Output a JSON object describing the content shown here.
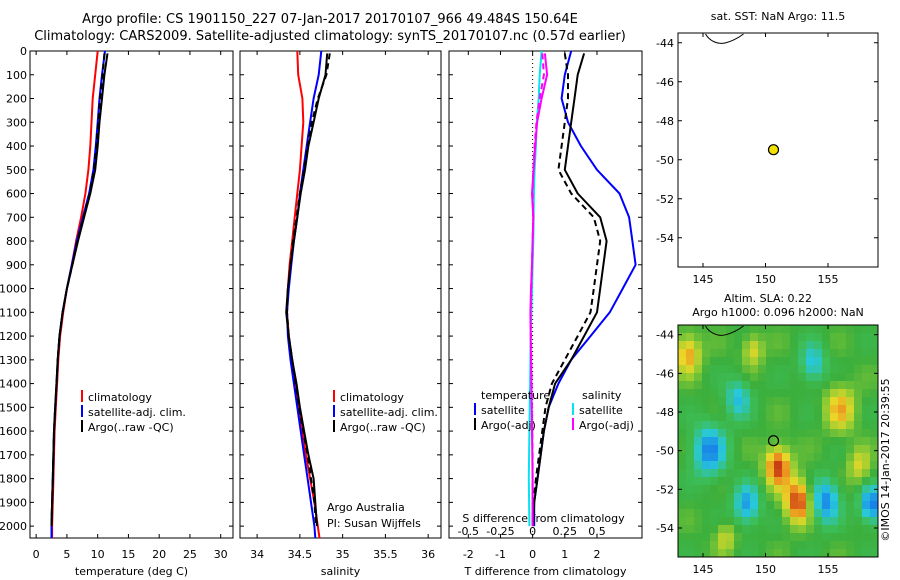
{
  "header": {
    "line1": "Argo profile: CS 1901150_227 07-Jan-2017 20170107_966 49.484S 150.64E",
    "line2": "Climatology: CARS2009. Satellite-adjusted climatology: synTS_20170107.nc (0.57d earlier)"
  },
  "colors": {
    "climatology": "#ff0000",
    "satellite": "#0000ff",
    "argo": "#000000",
    "salinity_satellite": "#00e5ee",
    "salinity_argo": "#ff00ff",
    "marker": "#f4e000"
  },
  "chart_data": [
    {
      "id": "temperature",
      "type": "line",
      "xlabel": "temperature (deg C)",
      "ylabel": "",
      "xlim": [
        -1,
        32
      ],
      "ylim": [
        0,
        2050
      ],
      "y_inverted": true,
      "xticks": [
        0,
        5,
        10,
        15,
        20,
        25,
        30
      ],
      "yticks": [
        0,
        100,
        200,
        300,
        400,
        500,
        600,
        700,
        800,
        900,
        1000,
        1100,
        1200,
        1300,
        1400,
        1500,
        1600,
        1700,
        1800,
        1900,
        2000
      ],
      "legend": [
        "climatology",
        "satellite-adj. clim.",
        "Argo(..raw -QC)"
      ],
      "series": [
        {
          "name": "climatology",
          "color": "#ff0000",
          "dash": "",
          "x": [
            10.0,
            9.6,
            9.2,
            9.0,
            8.8,
            8.5,
            8.0,
            7.3,
            6.5,
            5.8,
            5.0,
            4.4,
            3.9,
            3.6,
            3.4,
            3.2,
            3.0,
            2.9,
            2.8,
            2.7,
            2.6,
            2.6
          ],
          "y": [
            0,
            100,
            200,
            300,
            400,
            500,
            600,
            700,
            800,
            900,
            1000,
            1100,
            1200,
            1300,
            1400,
            1500,
            1600,
            1700,
            1800,
            1900,
            2000,
            2050
          ]
        },
        {
          "name": "satellite-adj. clim.",
          "color": "#0000ff",
          "dash": "",
          "x": [
            11.2,
            10.7,
            10.3,
            10.0,
            9.7,
            9.3,
            8.6,
            7.6,
            6.6,
            5.8,
            5.0,
            4.3,
            3.8,
            3.5,
            3.3,
            3.1,
            2.9,
            2.8,
            2.7,
            2.6,
            2.5,
            2.5
          ],
          "y": [
            0,
            100,
            200,
            300,
            400,
            500,
            600,
            700,
            800,
            900,
            1000,
            1100,
            1200,
            1300,
            1400,
            1500,
            1600,
            1700,
            1800,
            1900,
            2000,
            2050
          ]
        },
        {
          "name": "Argo(..raw -QC)",
          "color": "#000000",
          "dash": "",
          "x": [
            11.6,
            11.1,
            10.7,
            10.3,
            10.0,
            9.6,
            8.8,
            7.8,
            6.8,
            5.9,
            5.0,
            4.3,
            3.8,
            3.5,
            3.3,
            3.1,
            2.9,
            2.8,
            2.7,
            2.6,
            2.5
          ],
          "y": [
            10,
            100,
            200,
            300,
            400,
            500,
            600,
            700,
            800,
            900,
            1000,
            1100,
            1200,
            1300,
            1400,
            1500,
            1600,
            1700,
            1800,
            1900,
            2000
          ]
        },
        {
          "name": "",
          "color": "#000000",
          "dash": "6,4",
          "x": [
            11.1,
            10.8,
            10.4,
            10.1,
            9.8,
            9.4,
            8.7,
            7.7,
            6.7,
            5.9,
            5.0,
            4.3,
            3.8,
            3.5,
            3.3,
            3.1,
            2.9,
            2.8,
            2.7,
            2.6,
            2.5
          ],
          "y": [
            10,
            100,
            200,
            300,
            400,
            500,
            600,
            700,
            800,
            900,
            1000,
            1100,
            1200,
            1300,
            1400,
            1500,
            1600,
            1700,
            1800,
            1900,
            2000
          ]
        }
      ]
    },
    {
      "id": "salinity",
      "type": "line",
      "xlabel": "salinity",
      "ylabel": "",
      "xlim": [
        33.8,
        36.15
      ],
      "ylim": [
        0,
        2050
      ],
      "y_inverted": true,
      "xticks": [
        34,
        34.5,
        35,
        35.5,
        36
      ],
      "legend": [
        "climatology",
        "satellite-adj. clim.",
        "Argo(..raw -QC)"
      ],
      "annotations": [
        "Argo Australia",
        "PI: Susan Wijffels"
      ],
      "series": [
        {
          "name": "climatology",
          "color": "#ff0000",
          "dash": "",
          "x": [
            34.47,
            34.48,
            34.53,
            34.54,
            34.52,
            34.5,
            34.47,
            34.44,
            34.41,
            34.38,
            34.36,
            34.35,
            34.37,
            34.41,
            34.45,
            34.49,
            34.53,
            34.57,
            34.62,
            34.67,
            34.71,
            34.73
          ],
          "y": [
            0,
            100,
            200,
            300,
            400,
            500,
            600,
            700,
            800,
            900,
            1000,
            1100,
            1200,
            1300,
            1400,
            1500,
            1600,
            1700,
            1800,
            1900,
            2000,
            2050
          ]
        },
        {
          "name": "satellite-adj. clim.",
          "color": "#0000ff",
          "dash": "",
          "x": [
            34.75,
            34.72,
            34.66,
            34.62,
            34.58,
            34.54,
            34.5,
            34.47,
            34.43,
            34.4,
            34.37,
            34.35,
            34.36,
            34.39,
            34.43,
            34.47,
            34.51,
            34.55,
            34.59,
            34.63,
            34.67,
            34.68
          ],
          "y": [
            0,
            100,
            200,
            300,
            400,
            500,
            600,
            700,
            800,
            900,
            1000,
            1100,
            1200,
            1300,
            1400,
            1500,
            1600,
            1700,
            1800,
            1900,
            2000,
            2050
          ]
        },
        {
          "name": "Argo(..raw -QC)",
          "color": "#000000",
          "dash": "",
          "x": [
            34.82,
            34.8,
            34.72,
            34.66,
            34.6,
            34.56,
            34.51,
            34.47,
            34.43,
            34.39,
            34.36,
            34.34,
            34.37,
            34.41,
            34.46,
            34.5,
            34.55,
            34.6,
            34.66,
            34.68,
            34.7
          ],
          "y": [
            10,
            100,
            200,
            300,
            400,
            500,
            600,
            700,
            800,
            900,
            1000,
            1100,
            1200,
            1300,
            1400,
            1500,
            1600,
            1700,
            1800,
            1900,
            2000
          ]
        },
        {
          "name": "",
          "color": "#000000",
          "dash": "6,4",
          "x": [
            34.85,
            34.81,
            34.71,
            34.64,
            34.59,
            34.55,
            34.5,
            34.46,
            34.42,
            34.39,
            34.36,
            34.35,
            34.37,
            34.41,
            34.45,
            34.49,
            34.54,
            34.59,
            34.63,
            34.67,
            34.69
          ],
          "y": [
            10,
            100,
            200,
            300,
            400,
            500,
            600,
            700,
            800,
            900,
            1000,
            1100,
            1200,
            1300,
            1400,
            1500,
            1600,
            1700,
            1800,
            1900,
            2000
          ]
        }
      ]
    },
    {
      "id": "difference",
      "type": "line",
      "xlabel": "T difference from climatology",
      "xlabel_top": "S difference from climatology",
      "xlim": [
        -2.6,
        3.4
      ],
      "ylim": [
        0,
        2050
      ],
      "y_inverted": true,
      "xticks": [
        -2,
        -1,
        0,
        1,
        2
      ],
      "xticks_s": [
        -0.5,
        -0.25,
        0,
        0.25,
        0.5
      ],
      "legend_temperature_title": "temperature",
      "legend_salinity_title": "salinity",
      "legend_temperature": [
        "satellite",
        "Argo(-adj)"
      ],
      "legend_salinity": [
        "satellite",
        "Argo(-adj)"
      ],
      "series": [
        {
          "name": "satellite",
          "group": "temperature",
          "color": "#0000ff",
          "dash": "",
          "x": [
            1.2,
            1.0,
            0.9,
            1.1,
            1.5,
            2.0,
            2.7,
            3.0,
            3.1,
            3.2,
            2.8,
            2.4,
            1.8,
            1.2,
            0.8,
            0.5,
            0.35,
            0.25,
            0.15,
            0.05,
            0.05
          ],
          "y": [
            0,
            100,
            200,
            300,
            400,
            500,
            600,
            700,
            800,
            900,
            1000,
            1100,
            1200,
            1300,
            1400,
            1500,
            1600,
            1700,
            1800,
            1900,
            2000
          ]
        },
        {
          "name": "Argo(-adj)",
          "group": "temperature",
          "color": "#000000",
          "dash": "",
          "x": [
            1.6,
            1.4,
            1.3,
            1.2,
            1.1,
            1.0,
            1.4,
            2.1,
            2.3,
            2.2,
            2.1,
            2.0,
            1.6,
            1.2,
            0.7,
            0.5,
            0.35,
            0.25,
            0.15,
            0.05,
            0.02
          ],
          "y": [
            10,
            100,
            200,
            300,
            400,
            500,
            600,
            700,
            800,
            900,
            1000,
            1100,
            1200,
            1300,
            1400,
            1500,
            1600,
            1700,
            1800,
            1900,
            2000
          ]
        },
        {
          "name": "",
          "group": "temperature",
          "color": "#000000",
          "dash": "6,4",
          "x": [
            1.0,
            1.1,
            1.1,
            1.0,
            0.9,
            0.8,
            1.2,
            1.9,
            2.1,
            2.0,
            1.9,
            1.8,
            1.4,
            1.0,
            0.6,
            0.4,
            0.3,
            0.2,
            0.1,
            0.02,
            0.0
          ],
          "y": [
            10,
            100,
            200,
            300,
            400,
            500,
            600,
            700,
            800,
            900,
            1000,
            1100,
            1200,
            1300,
            1400,
            1500,
            1600,
            1700,
            1800,
            1900,
            2000
          ]
        },
        {
          "name": "satellite",
          "group": "salinity",
          "color": "#00e5ee",
          "dash": "",
          "x": [
            0.28,
            0.22,
            0.19,
            0.13,
            0.1,
            0.06,
            0.04,
            0.03,
            0.02,
            0.0,
            -0.02,
            -0.04,
            -0.06,
            -0.07,
            -0.08,
            -0.09,
            -0.1,
            -0.11,
            -0.12,
            -0.11,
            -0.1
          ],
          "y": [
            0,
            100,
            200,
            300,
            400,
            500,
            600,
            700,
            800,
            900,
            1000,
            1100,
            1200,
            1300,
            1400,
            1500,
            1600,
            1700,
            1800,
            1900,
            2000
          ]
        },
        {
          "name": "Argo(-adj)",
          "group": "salinity",
          "color": "#ff00ff",
          "dash": "",
          "x": [
            0.38,
            0.45,
            0.28,
            0.14,
            0.08,
            0.03,
            -0.02,
            0.02,
            0.0,
            -0.02,
            -0.05,
            -0.07,
            -0.06,
            -0.05,
            -0.04,
            -0.03,
            -0.02,
            -0.01,
            0.0,
            0.0,
            0.0
          ],
          "y": [
            10,
            100,
            200,
            300,
            400,
            500,
            600,
            700,
            800,
            900,
            1000,
            1100,
            1200,
            1300,
            1400,
            1500,
            1600,
            1700,
            1800,
            1900,
            2000
          ]
        },
        {
          "name": "",
          "group": "salinity",
          "color": "#ff00ff",
          "dash": "6,4",
          "x": [
            0.3,
            0.35,
            0.22,
            0.12,
            0.06,
            0.02,
            0.0,
            0.02,
            0.0,
            -0.02,
            -0.04,
            -0.06,
            -0.05,
            -0.04,
            -0.03,
            -0.02,
            -0.01,
            0.0,
            0.0,
            0.0,
            0.0
          ],
          "y": [
            10,
            100,
            200,
            300,
            400,
            500,
            600,
            700,
            800,
            900,
            1000,
            1100,
            1200,
            1300,
            1400,
            1500,
            1600,
            1700,
            1800,
            1900,
            2000
          ]
        }
      ]
    },
    {
      "id": "sst_map",
      "type": "scatter",
      "title": "sat. SST: NaN Argo: 11.5",
      "xlim": [
        143,
        159
      ],
      "ylim": [
        -55.5,
        -43.5
      ],
      "xticks": [
        145,
        150,
        155
      ],
      "yticks": [
        -44,
        -46,
        -48,
        -50,
        -52,
        -54
      ],
      "points": [
        {
          "x": 150.64,
          "y": -49.484
        }
      ]
    },
    {
      "id": "sla_map",
      "type": "heatmap",
      "title_line1": "Altim. SLA: 0.22",
      "title_line2": "Argo h1000: 0.096 h2000: NaN",
      "xlim": [
        143,
        159
      ],
      "ylim": [
        -55.5,
        -43.5
      ],
      "xticks": [
        145,
        150,
        155
      ],
      "yticks": [
        -44,
        -46,
        -48,
        -50,
        -52,
        -54
      ],
      "points": [
        {
          "x": 150.64,
          "y": -49.484
        }
      ],
      "blobs": [
        {
          "x": 151.0,
          "y": -50.8,
          "v": 1.0,
          "r": 1.0
        },
        {
          "x": 152.6,
          "y": -52.6,
          "v": 1.0,
          "r": 1.1
        },
        {
          "x": 143.8,
          "y": -45.0,
          "v": 0.7,
          "r": 1.0
        },
        {
          "x": 156.0,
          "y": -47.8,
          "v": 0.6,
          "r": 1.2
        },
        {
          "x": 145.5,
          "y": -50.0,
          "v": -0.9,
          "r": 1.3
        },
        {
          "x": 148.5,
          "y": -52.8,
          "v": -0.8,
          "r": 1.0
        },
        {
          "x": 154.8,
          "y": -52.6,
          "v": -0.9,
          "r": 1.1
        },
        {
          "x": 158.5,
          "y": -52.8,
          "v": -1.0,
          "r": 0.9
        },
        {
          "x": 147.8,
          "y": -47.3,
          "v": -0.6,
          "r": 1.0
        },
        {
          "x": 153.8,
          "y": -45.5,
          "v": -0.6,
          "r": 1.0
        },
        {
          "x": 149.0,
          "y": -44.8,
          "v": 0.5,
          "r": 0.8
        },
        {
          "x": 146.8,
          "y": -54.5,
          "v": 0.4,
          "r": 0.8
        },
        {
          "x": 157.5,
          "y": -50.8,
          "v": 0.45,
          "r": 0.9
        }
      ]
    }
  ],
  "side_text": "©IMOS 14-Jan-2017 20:39:55"
}
